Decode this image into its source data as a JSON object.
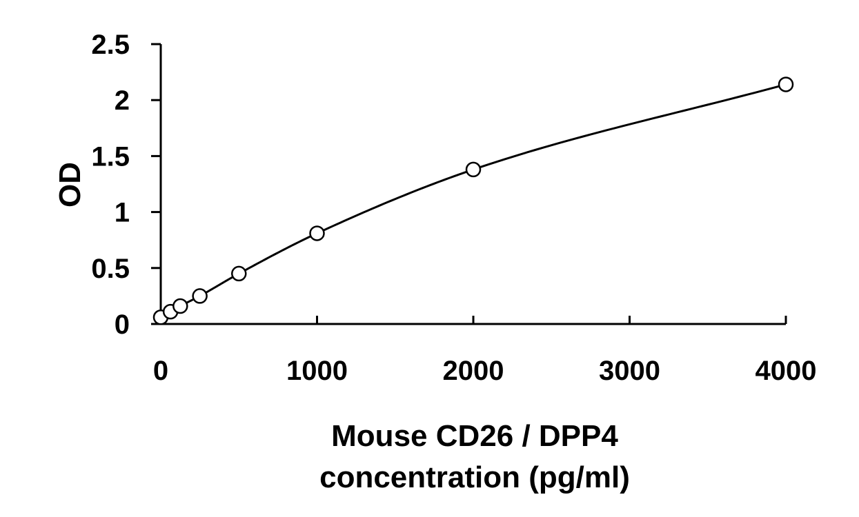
{
  "chart_data": {
    "type": "scatter",
    "title": "",
    "xlabel_lines": [
      "Mouse CD26 / DPP4",
      "concentration (pg/ml)"
    ],
    "ylabel": "OD",
    "xlim": [
      0,
      4000
    ],
    "ylim": [
      0,
      2.5
    ],
    "x_ticks": [
      0,
      1000,
      2000,
      3000,
      4000
    ],
    "x_tick_labels": [
      "0",
      "1000",
      "2000",
      "3000",
      "4000"
    ],
    "y_ticks": [
      0,
      0.5,
      1,
      1.5,
      2,
      2.5
    ],
    "y_tick_labels": [
      "0",
      "0.5",
      "1",
      "1.5",
      "2",
      "2.5"
    ],
    "grid": false,
    "legend": "none",
    "marker": "open-circle",
    "fit": "smooth-curve",
    "series": [
      {
        "x": [
          0,
          62.5,
          125,
          250,
          500,
          1000,
          2000,
          4000
        ],
        "y": [
          0.06,
          0.11,
          0.16,
          0.25,
          0.45,
          0.81,
          1.38,
          2.14
        ]
      }
    ]
  }
}
